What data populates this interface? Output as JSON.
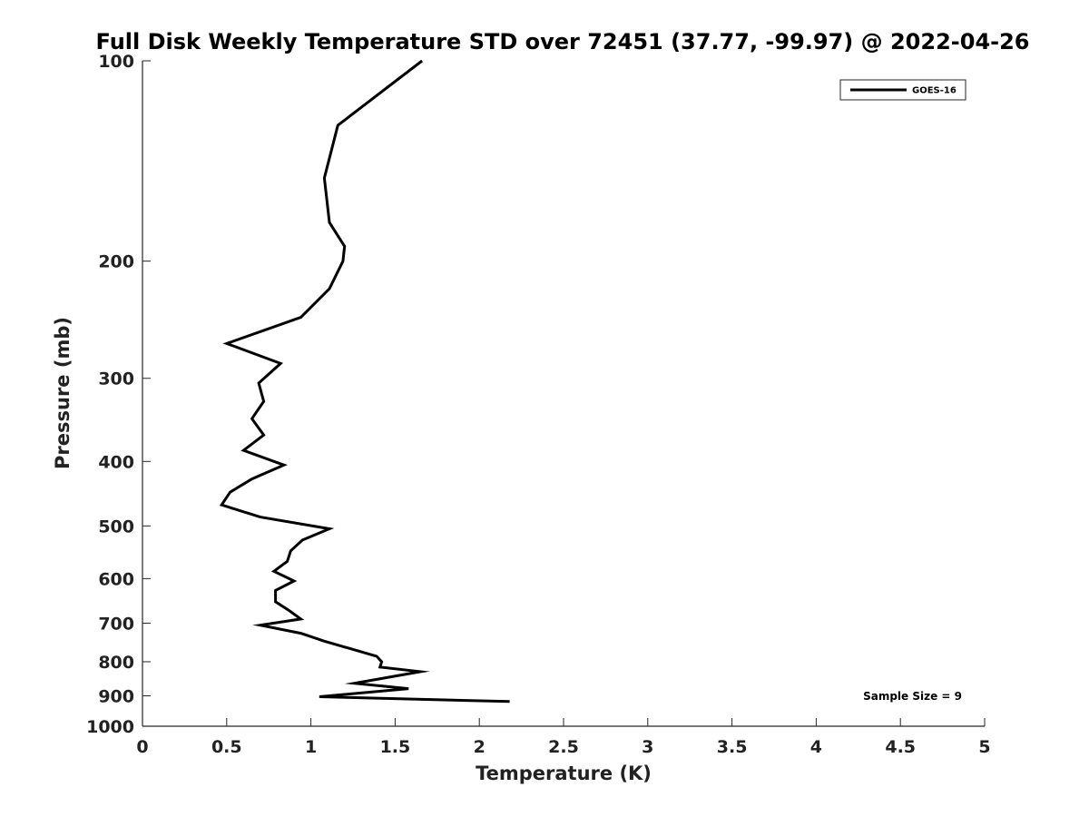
{
  "chart_data": {
    "type": "line",
    "title": "Full Disk Weekly Temperature STD over 72451 (37.77, -99.97) @ 2022-04-26",
    "xlabel": "Temperature (K)",
    "ylabel": "Pressure (mb)",
    "xlim": [
      0,
      5
    ],
    "ylim": [
      100,
      1000
    ],
    "yscale": "log",
    "y_reversed": true,
    "xticks": [
      0,
      0.5,
      1,
      1.5,
      2,
      2.5,
      3,
      3.5,
      4,
      4.5,
      5
    ],
    "xtick_labels": [
      "0",
      "0.5",
      "1",
      "1.5",
      "2",
      "2.5",
      "3",
      "3.5",
      "4",
      "4.5",
      "5"
    ],
    "yticks": [
      100,
      200,
      300,
      400,
      500,
      600,
      700,
      800,
      900,
      1000
    ],
    "ytick_labels": [
      "100",
      "200",
      "300",
      "400",
      "500",
      "600",
      "700",
      "800",
      "900",
      "1000"
    ],
    "grid": false,
    "legend_position": "top-right",
    "series": [
      {
        "name": "GOES-16",
        "color": "#000000",
        "points": [
          [
            1.66,
            100
          ],
          [
            1.16,
            125
          ],
          [
            1.08,
            150
          ],
          [
            1.11,
            175
          ],
          [
            1.2,
            190
          ],
          [
            1.19,
            200
          ],
          [
            1.11,
            220
          ],
          [
            0.94,
            243
          ],
          [
            0.5,
            266
          ],
          [
            0.82,
            285
          ],
          [
            0.69,
            305
          ],
          [
            0.72,
            325
          ],
          [
            0.65,
            345
          ],
          [
            0.72,
            365
          ],
          [
            0.6,
            385
          ],
          [
            0.84,
            405
          ],
          [
            0.65,
            425
          ],
          [
            0.52,
            445
          ],
          [
            0.47,
            465
          ],
          [
            0.7,
            485
          ],
          [
            1.11,
            505
          ],
          [
            0.95,
            525
          ],
          [
            0.88,
            545
          ],
          [
            0.86,
            565
          ],
          [
            0.78,
            585
          ],
          [
            0.9,
            605
          ],
          [
            0.79,
            625
          ],
          [
            0.79,
            650
          ],
          [
            0.87,
            670
          ],
          [
            0.94,
            690
          ],
          [
            0.7,
            705
          ],
          [
            0.94,
            725
          ],
          [
            1.08,
            745
          ],
          [
            1.39,
            785
          ],
          [
            1.42,
            800
          ],
          [
            1.41,
            815
          ],
          [
            1.65,
            828
          ],
          [
            1.26,
            862
          ],
          [
            1.58,
            878
          ],
          [
            1.05,
            903
          ],
          [
            2.18,
            918
          ]
        ]
      }
    ],
    "annotations": [
      "Sample Size = 9"
    ]
  }
}
